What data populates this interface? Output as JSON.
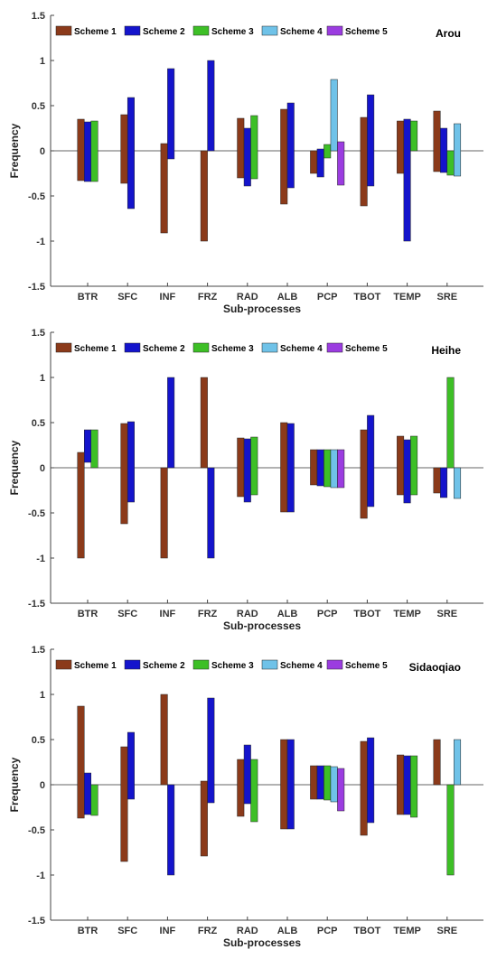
{
  "chart_data": [
    {
      "type": "bar",
      "label": "Arou",
      "xlabel": "Sub-processes",
      "ylabel": "Frequency",
      "ylim": [
        -1.5,
        1.5
      ],
      "yticks": [
        "-1.5",
        "-1",
        "-0.5",
        "0",
        "0.5",
        "1",
        "1.5"
      ],
      "categories": [
        "BTR",
        "SFC",
        "INF",
        "FRZ",
        "RAD",
        "ALB",
        "PCP",
        "TBOT",
        "TEMP",
        "SRE"
      ],
      "legend": {
        "position": "top"
      },
      "series": [
        {
          "name": "Scheme 1",
          "color": "#8B3A1A",
          "pos": [
            0.35,
            0.4,
            0.08,
            0,
            0.36,
            0.46,
            0,
            0.37,
            0.33,
            0.44
          ],
          "neg": [
            -0.33,
            -0.36,
            -0.91,
            -1.0,
            -0.3,
            -0.59,
            -0.25,
            -0.61,
            -0.25,
            -0.23
          ]
        },
        {
          "name": "Scheme 2",
          "color": "#1414CC",
          "pos": [
            0.32,
            0.59,
            0.91,
            1.0,
            0.25,
            0.53,
            0.02,
            0.62,
            0.35,
            0.25
          ],
          "neg": [
            -0.34,
            -0.64,
            -0.09,
            0,
            -0.39,
            -0.41,
            -0.29,
            -0.39,
            -1.0,
            -0.24
          ]
        },
        {
          "name": "Scheme 3",
          "color": "#3DBF26",
          "pos": [
            0.33,
            null,
            null,
            null,
            0.39,
            null,
            0.07,
            null,
            0.33,
            0
          ],
          "neg": [
            -0.34,
            null,
            null,
            null,
            -0.31,
            null,
            -0.08,
            null,
            0,
            -0.27
          ]
        },
        {
          "name": "Scheme 4",
          "color": "#6FC2E8",
          "pos": [
            null,
            null,
            null,
            null,
            null,
            null,
            0.79,
            null,
            null,
            0.3
          ],
          "neg": [
            null,
            null,
            null,
            null,
            null,
            null,
            0,
            null,
            null,
            -0.28
          ]
        },
        {
          "name": "Scheme 5",
          "color": "#9B3CE0",
          "pos": [
            null,
            null,
            null,
            null,
            null,
            null,
            0.1,
            null,
            null,
            null
          ],
          "neg": [
            null,
            null,
            null,
            null,
            null,
            null,
            -0.38,
            null,
            null,
            null
          ]
        }
      ]
    },
    {
      "type": "bar",
      "label": "Heihe",
      "xlabel": "Sub-processes",
      "ylabel": "Frequency",
      "ylim": [
        -1.5,
        1.5
      ],
      "yticks": [
        "-1.5",
        "-1",
        "-0.5",
        "0",
        "0.5",
        "1",
        "1.5"
      ],
      "categories": [
        "BTR",
        "SFC",
        "INF",
        "FRZ",
        "RAD",
        "ALB",
        "PCP",
        "TBOT",
        "TEMP",
        "SRE"
      ],
      "legend": {
        "position": "top"
      },
      "series": [
        {
          "name": "Scheme 1",
          "color": "#8B3A1A",
          "pos": [
            0.17,
            0.49,
            0,
            1.0,
            0.33,
            0.5,
            0.2,
            0.42,
            0.35,
            0
          ],
          "neg": [
            -1.0,
            -0.62,
            -1.0,
            0,
            -0.32,
            -0.49,
            -0.19,
            -0.56,
            -0.3,
            -0.28
          ]
        },
        {
          "name": "Scheme 2",
          "color": "#1414CC",
          "pos": [
            0.42,
            0.51,
            1.0,
            0,
            0.32,
            0.49,
            0.2,
            0.58,
            0.31,
            0
          ],
          "neg": [
            0.06,
            -0.38,
            0,
            -1.0,
            -0.38,
            -0.49,
            -0.2,
            -0.43,
            -0.39,
            -0.33
          ]
        },
        {
          "name": "Scheme 3",
          "color": "#3DBF26",
          "pos": [
            0.42,
            null,
            null,
            null,
            0.34,
            null,
            0.2,
            null,
            0.35,
            1.0
          ],
          "neg": [
            0,
            null,
            null,
            null,
            -0.3,
            null,
            -0.21,
            null,
            -0.3,
            0
          ]
        },
        {
          "name": "Scheme 4",
          "color": "#6FC2E8",
          "pos": [
            null,
            null,
            null,
            null,
            null,
            null,
            0.2,
            null,
            null,
            0
          ],
          "neg": [
            null,
            null,
            null,
            null,
            null,
            null,
            -0.22,
            null,
            null,
            -0.34
          ]
        },
        {
          "name": "Scheme 5",
          "color": "#9B3CE0",
          "pos": [
            null,
            null,
            null,
            null,
            null,
            null,
            0.2,
            null,
            null,
            null
          ],
          "neg": [
            null,
            null,
            null,
            null,
            null,
            null,
            -0.22,
            null,
            null,
            null
          ]
        }
      ]
    },
    {
      "type": "bar",
      "label": "Sidaoqiao",
      "xlabel": "Sub-processes",
      "ylabel": "Frequency",
      "ylim": [
        -1.5,
        1.5
      ],
      "yticks": [
        "-1.5",
        "-1",
        "-0.5",
        "0",
        "0.5",
        "1",
        "1.5"
      ],
      "categories": [
        "BTR",
        "SFC",
        "INF",
        "FRZ",
        "RAD",
        "ALB",
        "PCP",
        "TBOT",
        "TEMP",
        "SRE"
      ],
      "legend": {
        "position": "top"
      },
      "series": [
        {
          "name": "Scheme 1",
          "color": "#8B3A1A",
          "pos": [
            0.87,
            0.42,
            1.0,
            0.04,
            0.28,
            0.5,
            0.21,
            0.48,
            0.33,
            0.5
          ],
          "neg": [
            -0.37,
            -0.85,
            0,
            -0.79,
            -0.35,
            -0.49,
            -0.16,
            -0.56,
            -0.33,
            0
          ]
        },
        {
          "name": "Scheme 2",
          "color": "#1414CC",
          "pos": [
            0.13,
            0.58,
            0,
            0.96,
            0.44,
            0.5,
            0.21,
            0.52,
            0.32,
            0
          ],
          "neg": [
            -0.33,
            -0.16,
            -1.0,
            -0.2,
            -0.21,
            -0.49,
            -0.16,
            -0.42,
            -0.33,
            0
          ]
        },
        {
          "name": "Scheme 3",
          "color": "#3DBF26",
          "pos": [
            0,
            null,
            null,
            null,
            0.28,
            null,
            0.21,
            null,
            0.32,
            0
          ],
          "neg": [
            -0.34,
            null,
            null,
            null,
            -0.41,
            null,
            -0.17,
            null,
            -0.36,
            -1.0
          ]
        },
        {
          "name": "Scheme 4",
          "color": "#6FC2E8",
          "pos": [
            null,
            null,
            null,
            null,
            null,
            null,
            0.2,
            null,
            null,
            0.5
          ],
          "neg": [
            null,
            null,
            null,
            null,
            null,
            null,
            -0.19,
            null,
            null,
            0
          ]
        },
        {
          "name": "Scheme 5",
          "color": "#9B3CE0",
          "pos": [
            null,
            null,
            null,
            null,
            null,
            null,
            0.18,
            null,
            null,
            null
          ],
          "neg": [
            null,
            null,
            null,
            null,
            null,
            null,
            -0.29,
            null,
            null,
            null
          ]
        }
      ]
    }
  ]
}
